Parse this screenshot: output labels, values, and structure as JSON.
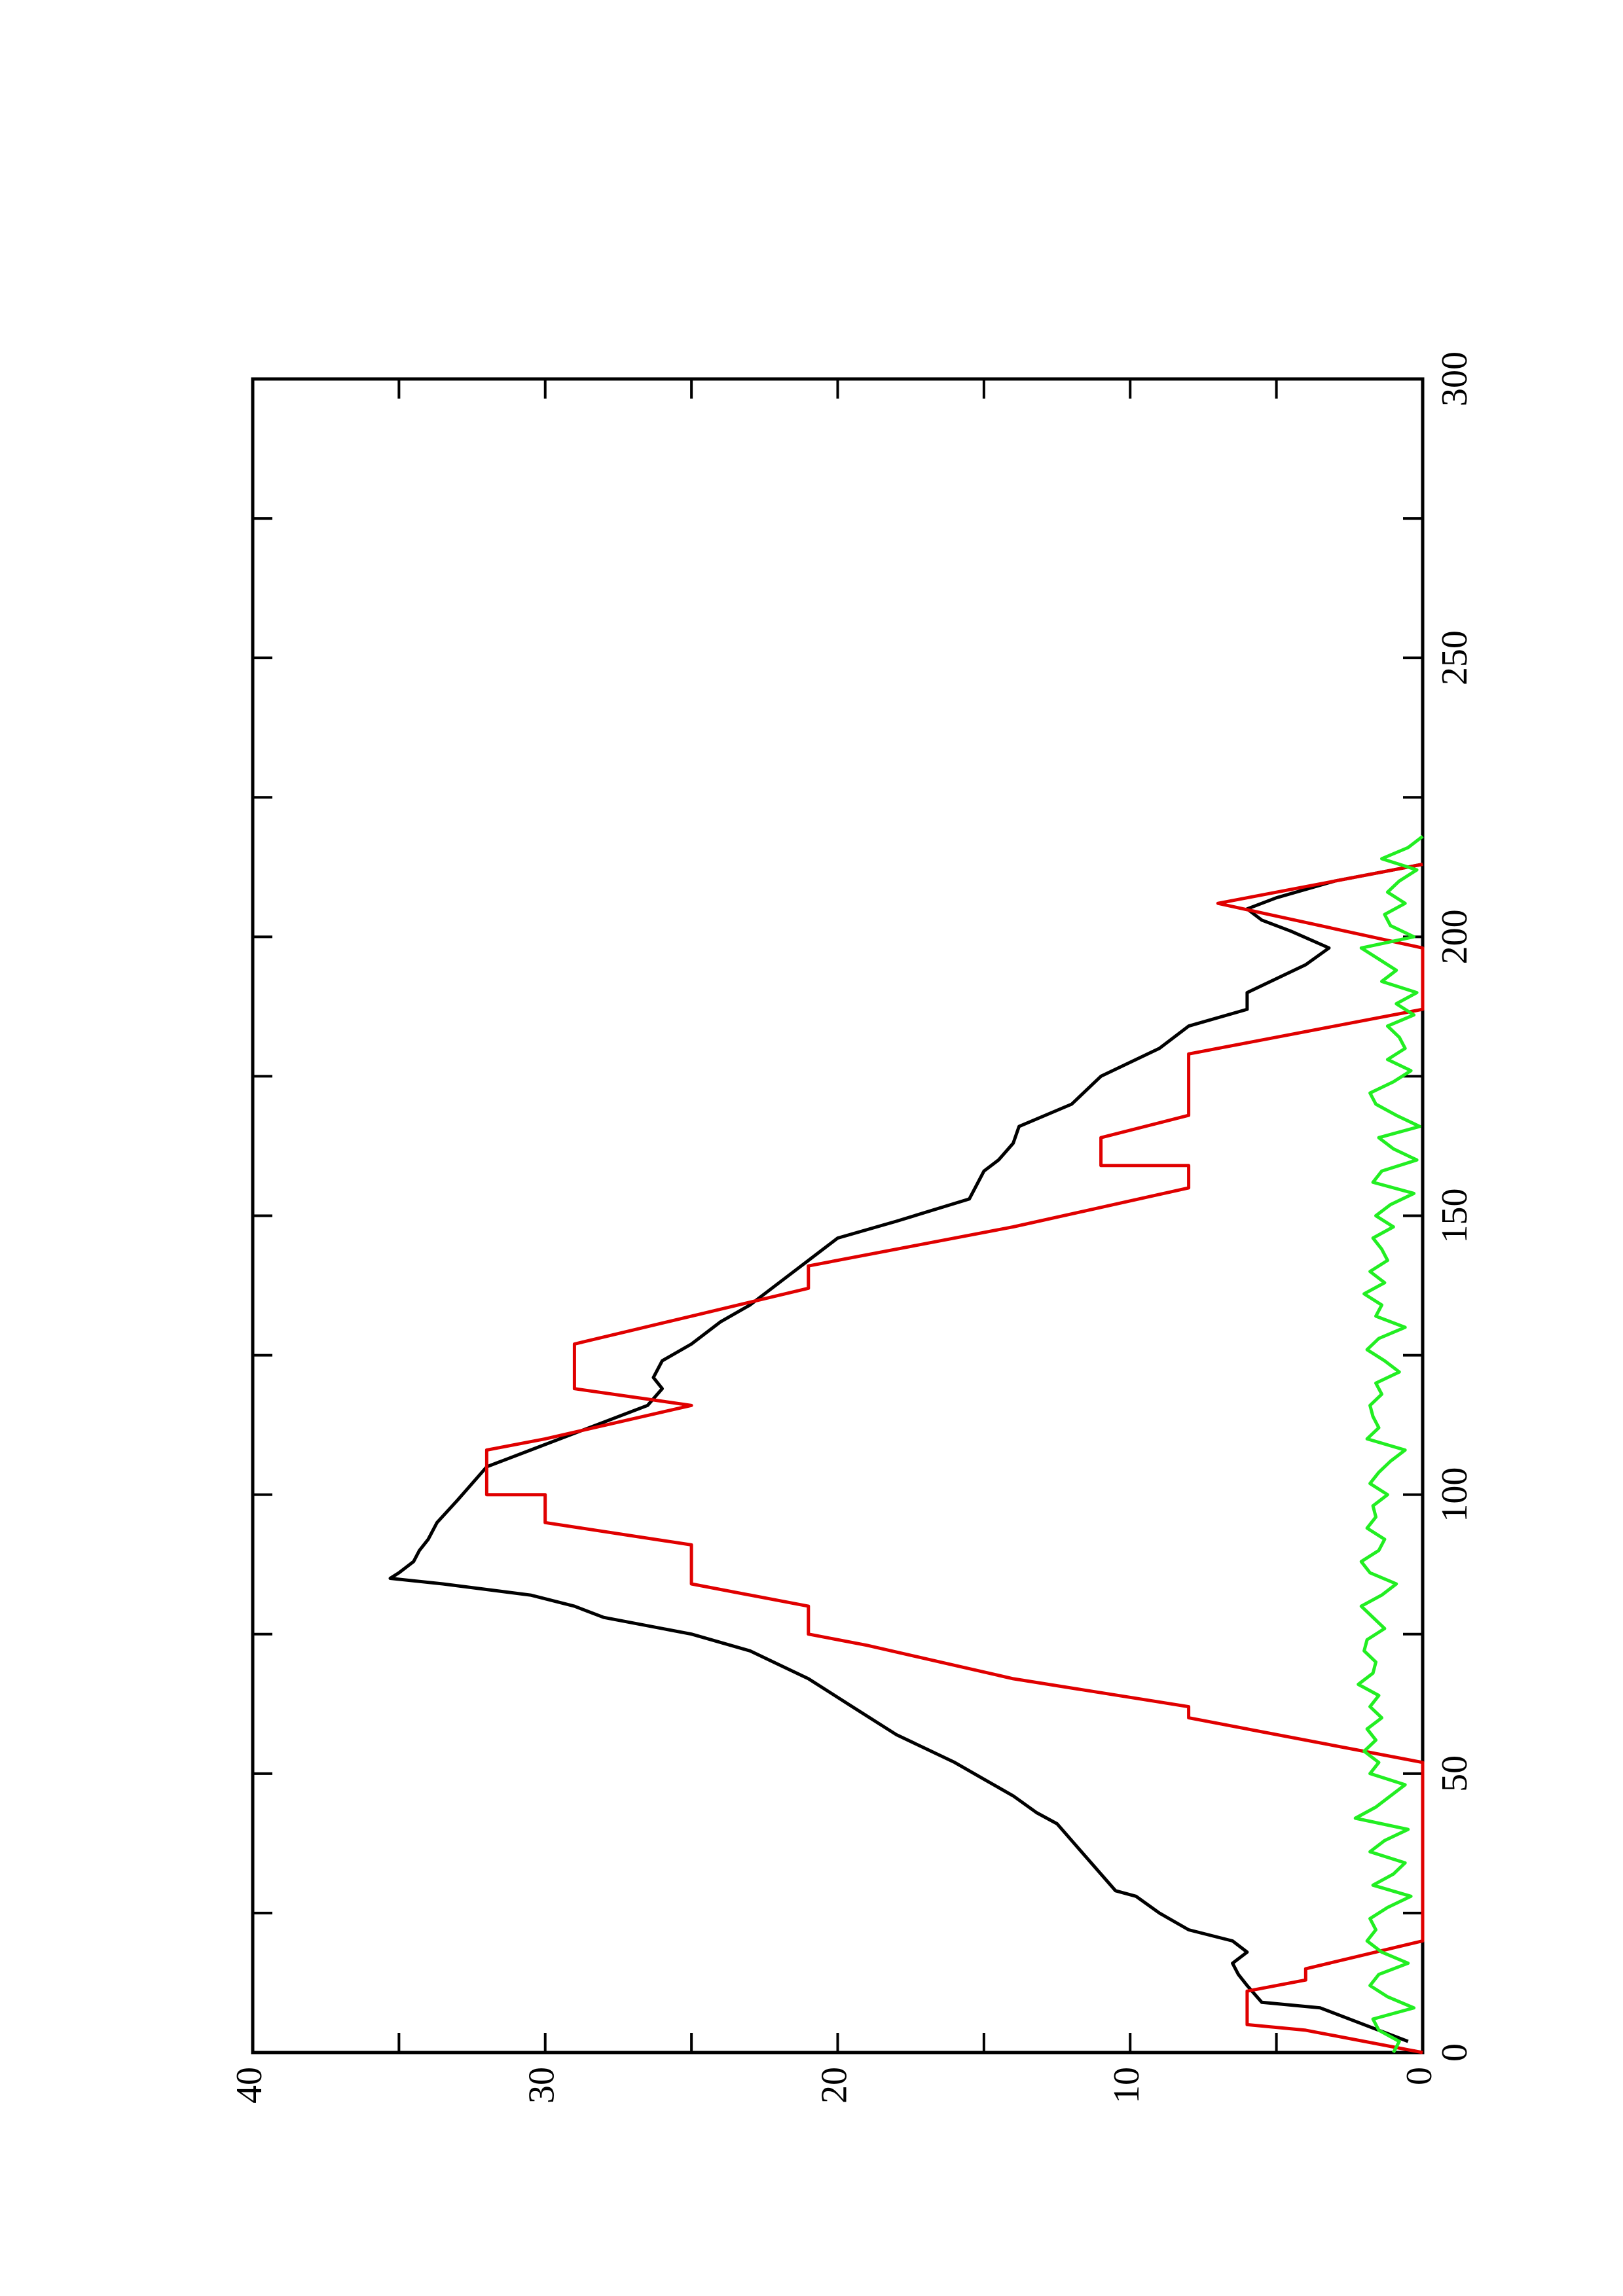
{
  "chart_data": {
    "type": "line",
    "xlim": [
      0,
      300
    ],
    "ylim": [
      0,
      40
    ],
    "xticks": [
      0,
      50,
      100,
      150,
      200,
      250,
      300
    ],
    "xminorticks": [
      25,
      75,
      125,
      175,
      225,
      275
    ],
    "yticks": [
      0,
      10,
      20,
      30,
      40
    ],
    "yminorticks": [
      5,
      15,
      25,
      35
    ],
    "series": [
      {
        "color": "#000000",
        "x": [
          2,
          5,
          8,
          9,
          12,
          14,
          16,
          18,
          20,
          22,
          25,
          28,
          29,
          32,
          35,
          38,
          41,
          43,
          46,
          49,
          52,
          57,
          62,
          67,
          72,
          75,
          78,
          80,
          82,
          84,
          85,
          86,
          88,
          90,
          92,
          95,
          99,
          102,
          105,
          108,
          110,
          113,
          116,
          119,
          121,
          124,
          127,
          131,
          134,
          138,
          142,
          146,
          149,
          153,
          158,
          160,
          163,
          166,
          170,
          175,
          180,
          184,
          187,
          190,
          195,
          198,
          201,
          203,
          205,
          207,
          210,
          213
        ],
        "values": [
          0.5,
          2,
          3.5,
          5.5,
          6,
          6.3,
          6.5,
          6,
          6.5,
          8,
          9,
          9.8,
          10.5,
          11,
          11.5,
          12,
          12.5,
          13.2,
          14,
          15,
          16,
          18,
          19.5,
          21,
          23,
          25,
          28,
          29,
          30.5,
          33.5,
          35.3,
          35,
          34.5,
          34.3,
          34,
          33.7,
          33,
          32.5,
          32,
          30.5,
          29.5,
          28,
          26.5,
          26,
          26.3,
          26,
          25,
          24,
          23,
          22,
          21,
          20,
          18,
          15.5,
          15,
          14.5,
          14,
          13.8,
          12,
          11,
          9,
          8,
          6,
          6,
          4,
          3.2,
          4.5,
          5.5,
          6,
          5,
          3,
          0
        ]
      },
      {
        "color": "#e00000",
        "x": [
          0,
          4,
          5,
          11,
          13,
          15,
          20,
          52,
          60,
          62,
          67,
          73,
          75,
          80,
          84,
          91,
          95,
          100,
          100,
          108,
          110,
          116,
          119,
          127,
          132,
          137,
          141,
          148,
          155,
          159,
          159,
          164,
          168,
          179,
          187,
          198,
          206,
          207,
          213
        ],
        "values": [
          0,
          4,
          6,
          6,
          4,
          4,
          0,
          0,
          8,
          8,
          14,
          19,
          21,
          21,
          25,
          25,
          30,
          30,
          32,
          32,
          30,
          25,
          29,
          29,
          25,
          21,
          21,
          14,
          8,
          8,
          11,
          11,
          8,
          8,
          0,
          0,
          7,
          6,
          0
        ]
      },
      {
        "color": "#22ee22",
        "x": [
          0,
          2,
          4,
          6,
          8,
          10,
          12,
          14,
          16,
          18,
          20,
          22,
          24,
          26,
          28,
          30,
          32,
          34,
          36,
          38,
          40,
          42,
          44,
          46,
          48,
          50,
          52,
          54,
          56,
          58,
          60,
          62,
          64,
          66,
          68,
          70,
          72,
          74,
          76,
          78,
          80,
          82,
          84,
          86,
          88,
          90,
          92,
          94,
          96,
          98,
          100,
          102,
          104,
          106,
          108,
          110,
          112,
          114,
          116,
          118,
          120,
          122,
          124,
          126,
          128,
          130,
          132,
          134,
          136,
          138,
          140,
          142,
          144,
          146,
          148,
          150,
          152,
          154,
          156,
          158,
          160,
          162,
          164,
          166,
          168,
          170,
          172,
          174,
          176,
          178,
          180,
          182,
          184,
          186,
          188,
          190,
          192,
          194,
          196,
          198,
          200,
          202,
          204,
          206,
          208,
          210,
          212,
          214,
          216,
          218
        ],
        "values": [
          1,
          0.8,
          1.5,
          1.7,
          0.3,
          1.2,
          1.8,
          1.5,
          0.5,
          1.4,
          1.9,
          1.6,
          1.8,
          1.2,
          0.4,
          1.7,
          1,
          0.6,
          1.8,
          1.3,
          0.5,
          2.3,
          1.6,
          1.1,
          0.6,
          1.8,
          1.5,
          2,
          1.6,
          1.9,
          1.4,
          1.8,
          1.5,
          2.2,
          1.7,
          1.6,
          2,
          1.9,
          1.3,
          1.7,
          2.1,
          1.4,
          0.9,
          1.8,
          2.1,
          1.5,
          1.3,
          1.9,
          1.6,
          1.7,
          1.2,
          1.8,
          1.5,
          1.1,
          0.6,
          1.9,
          1.5,
          1.7,
          1.8,
          1.4,
          1.6,
          0.8,
          1.3,
          1.9,
          1.5,
          0.6,
          1.6,
          1.4,
          2,
          1.3,
          1.8,
          1.2,
          1.4,
          1.7,
          1,
          1.6,
          1.1,
          0.3,
          1.7,
          1.4,
          0.2,
          1,
          1.5,
          0.1,
          0.9,
          1.6,
          1.8,
          1,
          0.4,
          1.2,
          0.6,
          0.8,
          1.2,
          0.3,
          0.9,
          0.2,
          1.4,
          0.9,
          1.5,
          2.1,
          0.3,
          1.1,
          1.3,
          0.6,
          1.2,
          0.8,
          0.2,
          1.4,
          0.5,
          0
        ]
      }
    ]
  }
}
